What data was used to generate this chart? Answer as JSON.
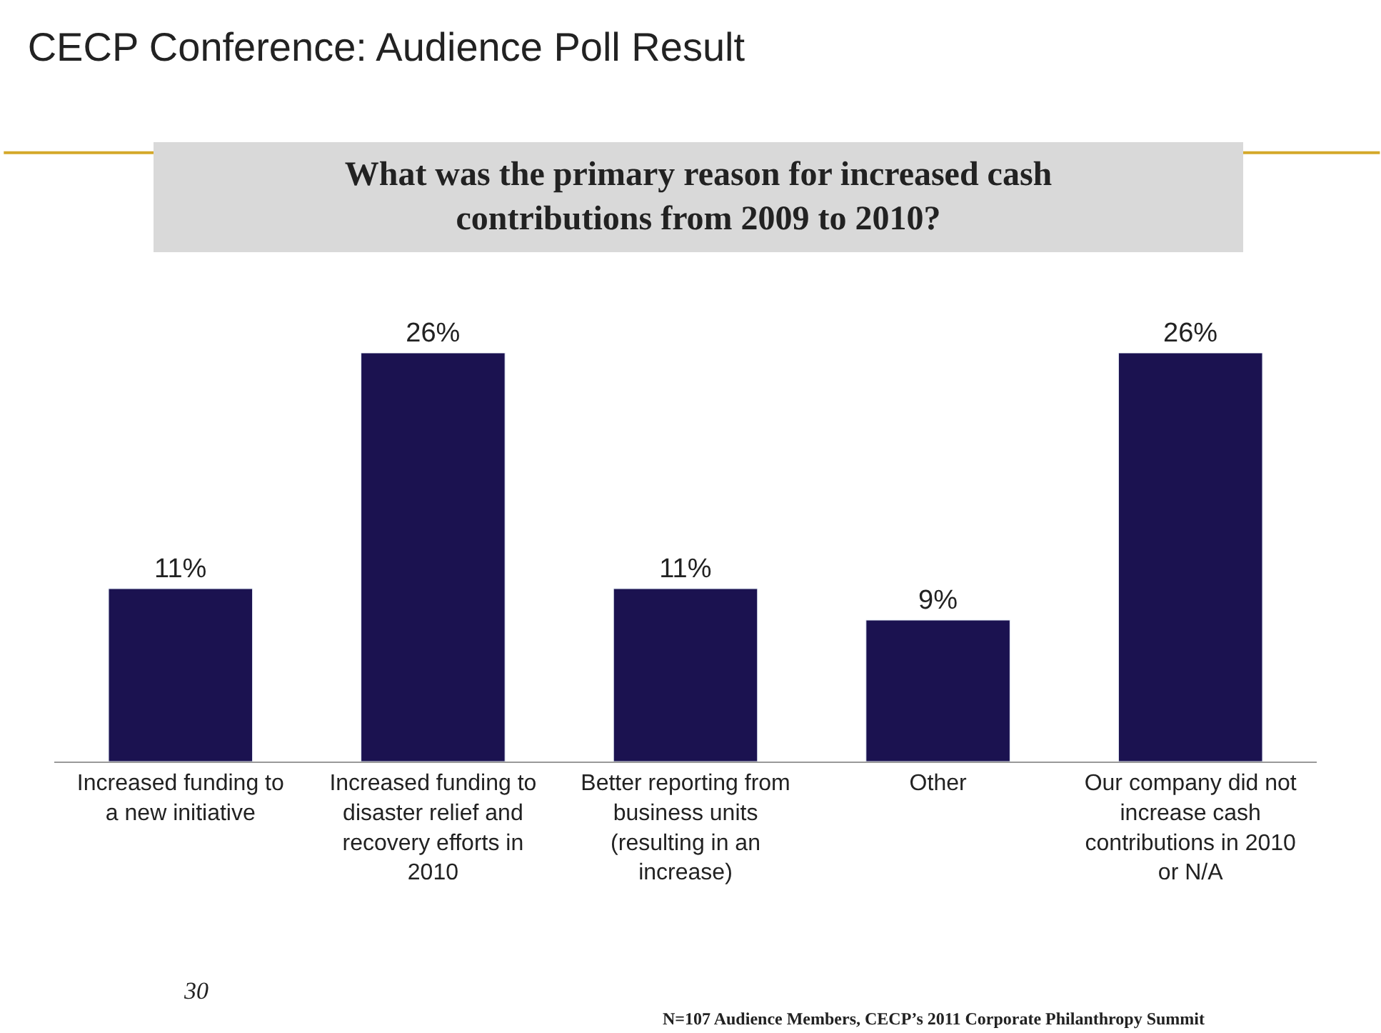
{
  "chart_data": {
    "type": "bar",
    "title": "CECP Conference: Audience Poll Result",
    "subtitle": "What was the primary reason for increased cash contributions from 2009 to 2010?",
    "categories": [
      "Increased funding to a new initiative",
      "Increased funding to disaster relief and recovery efforts in 2010",
      "Better reporting from business units (resulting in an increase)",
      "Other",
      "Our company did not increase cash contributions in 2010 or N/A"
    ],
    "values": [
      11,
      26,
      11,
      9,
      26
    ],
    "value_labels": [
      "11%",
      "26%",
      "11%",
      "9%",
      "26%"
    ],
    "color": "#1b1250",
    "tick_labels": "x",
    "annotations": [
      "30",
      "N=107 Audience Members, CECP’s 2011 Corporate Philanthropy Summit"
    ]
  }
}
